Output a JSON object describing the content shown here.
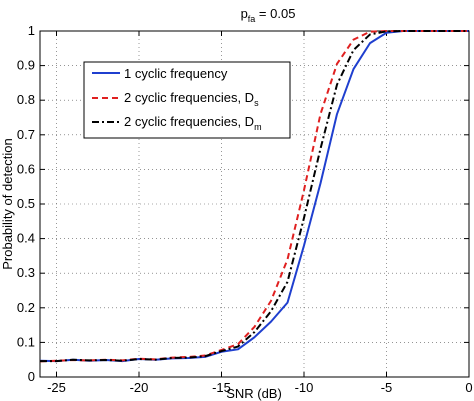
{
  "chart_data": {
    "type": "line",
    "title_main": "p",
    "title_sub": "fa",
    "title_rest": " = 0.05",
    "xlabel": "SNR (dB)",
    "ylabel": "Probability of detection",
    "xlim": [
      -26,
      0
    ],
    "ylim": [
      0,
      1
    ],
    "xticks": [
      -25,
      -20,
      -15,
      -10,
      -5,
      0
    ],
    "yticks": [
      0,
      0.1,
      0.2,
      0.3,
      0.4,
      0.5,
      0.6,
      0.7,
      0.8,
      0.9,
      1
    ],
    "grid": true,
    "legend_position": "top-left",
    "x": [
      -26,
      -25,
      -24,
      -23,
      -22,
      -21,
      -20,
      -19,
      -18,
      -17,
      -16,
      -15,
      -14,
      -13,
      -12,
      -11,
      -10,
      -9,
      -8,
      -7,
      -6,
      -5,
      -4,
      -3,
      -2,
      -1,
      0
    ],
    "series": [
      {
        "name_main": "1 cyclic frequency",
        "name_sub": "",
        "color": "#1f3fcf",
        "dash": "solid",
        "values": [
          0.047,
          0.046,
          0.05,
          0.047,
          0.049,
          0.046,
          0.052,
          0.05,
          0.054,
          0.055,
          0.058,
          0.073,
          0.08,
          0.115,
          0.16,
          0.215,
          0.38,
          0.56,
          0.76,
          0.89,
          0.965,
          0.995,
          1.0,
          1.0,
          1.0,
          1.0,
          1.0
        ]
      },
      {
        "name_main": "2 cyclic frequencies, D",
        "name_sub": "s",
        "color": "#e02020",
        "dash": "6,4",
        "values": [
          0.045,
          0.047,
          0.049,
          0.048,
          0.05,
          0.048,
          0.053,
          0.051,
          0.056,
          0.058,
          0.062,
          0.078,
          0.095,
          0.145,
          0.22,
          0.34,
          0.54,
          0.76,
          0.905,
          0.975,
          0.998,
          1.0,
          1.0,
          1.0,
          1.0,
          1.0,
          1.0
        ]
      },
      {
        "name_main": "2 cyclic frequencies, D",
        "name_sub": "m",
        "color": "#000000",
        "dash": "7,3,2,3",
        "values": [
          0.046,
          0.046,
          0.05,
          0.048,
          0.049,
          0.047,
          0.052,
          0.05,
          0.055,
          0.056,
          0.06,
          0.075,
          0.088,
          0.13,
          0.19,
          0.275,
          0.46,
          0.66,
          0.845,
          0.945,
          0.99,
          0.999,
          1.0,
          1.0,
          1.0,
          1.0,
          1.0
        ]
      }
    ]
  }
}
